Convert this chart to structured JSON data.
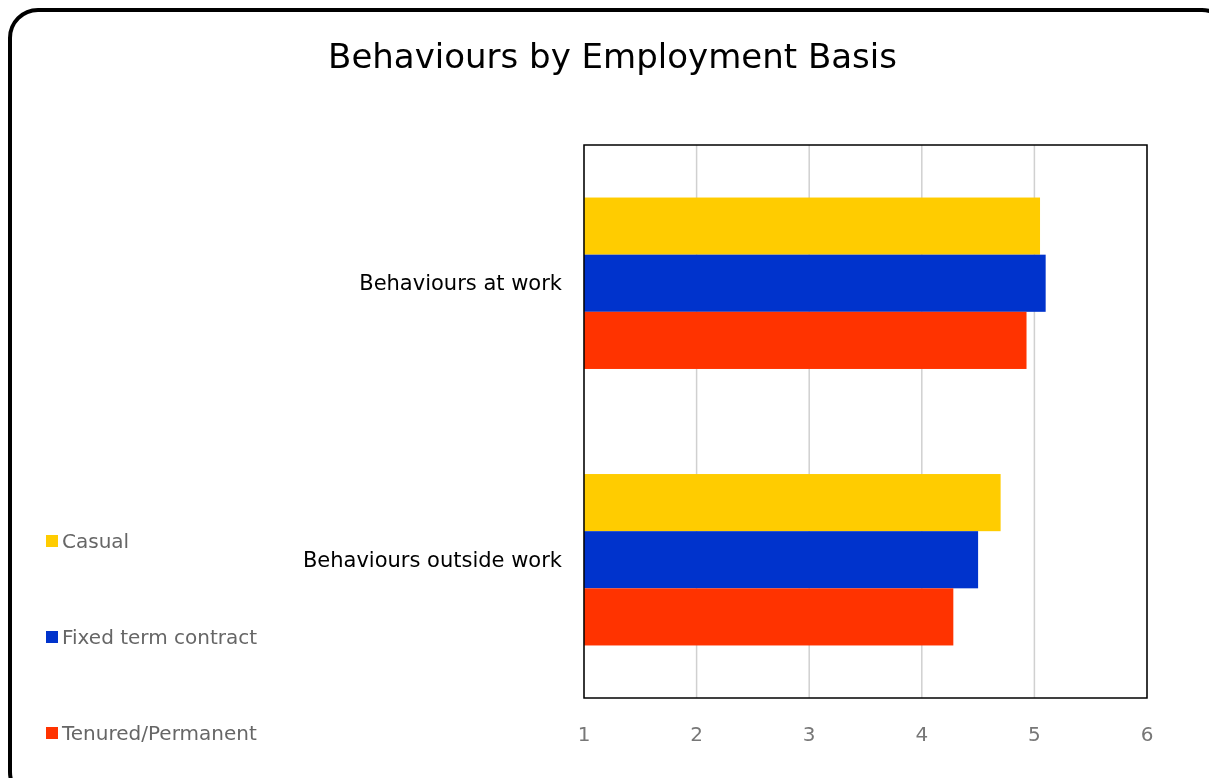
{
  "chart_data": {
    "type": "bar",
    "orientation": "horizontal",
    "title": "Behaviours by Employment Basis",
    "categories": [
      "Behaviours at work",
      "Behaviours outside work"
    ],
    "series": [
      {
        "name": "Casual",
        "color": "#ffcc00",
        "values": [
          5.05,
          4.7
        ]
      },
      {
        "name": "Fixed term contract",
        "color": "#0033cc",
        "values": [
          5.1,
          4.5
        ]
      },
      {
        "name": "Tenured/Permanent",
        "color": "#ff3300",
        "values": [
          4.93,
          4.28
        ]
      }
    ],
    "xlim": [
      1,
      6
    ],
    "xticks": [
      1,
      2,
      3,
      4,
      5,
      6
    ],
    "grid": "x",
    "legend": "left"
  }
}
